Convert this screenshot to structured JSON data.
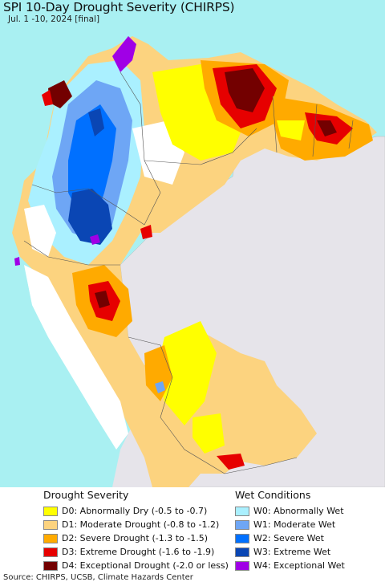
{
  "title": "SPI 10-Day Drought Severity (CHIRPS)",
  "subtitle": "Jul. 1 -10, 2024 [final]",
  "colors": {
    "ocean": "#a9f0f2",
    "land_outside": "#e6e4ea",
    "D0": "#ffff00",
    "D1": "#fcd37f",
    "D2": "#ffaa00",
    "D3": "#e60000",
    "D4": "#730000",
    "W0": "#aaf0ff",
    "W1": "#6ea6f5",
    "W2": "#0070ff",
    "W3": "#0a46b4",
    "W4": "#a000e6"
  },
  "legend": {
    "drought_heading": "Drought Severity",
    "wet_heading": "Wet Conditions",
    "drought_items": [
      {
        "label": "D0: Abnormally Dry (-0.5 to -0.7)",
        "color": "#ffff00"
      },
      {
        "label": "D1: Moderate Drought (-0.8 to -1.2)",
        "color": "#fcd37f"
      },
      {
        "label": "D2: Severe Drought (-1.3 to -1.5)",
        "color": "#ffaa00"
      },
      {
        "label": "D3: Extreme Drought (-1.6 to -1.9)",
        "color": "#e60000"
      },
      {
        "label": "D4: Exceptional Drought (-2.0 or less)",
        "color": "#730000"
      }
    ],
    "wet_items": [
      {
        "label": "W0: Abnormally Wet",
        "color": "#aaf0ff"
      },
      {
        "label": "W1: Moderate Wet",
        "color": "#6ea6f5"
      },
      {
        "label": "W2: Severe Wet",
        "color": "#0070ff"
      },
      {
        "label": "W3: Extreme Wet",
        "color": "#0a46b4"
      },
      {
        "label": "W4: Exceptional Wet",
        "color": "#a000e6"
      }
    ]
  },
  "source": "Source: CHIRPS, UCSB, Climate Hazards Center"
}
